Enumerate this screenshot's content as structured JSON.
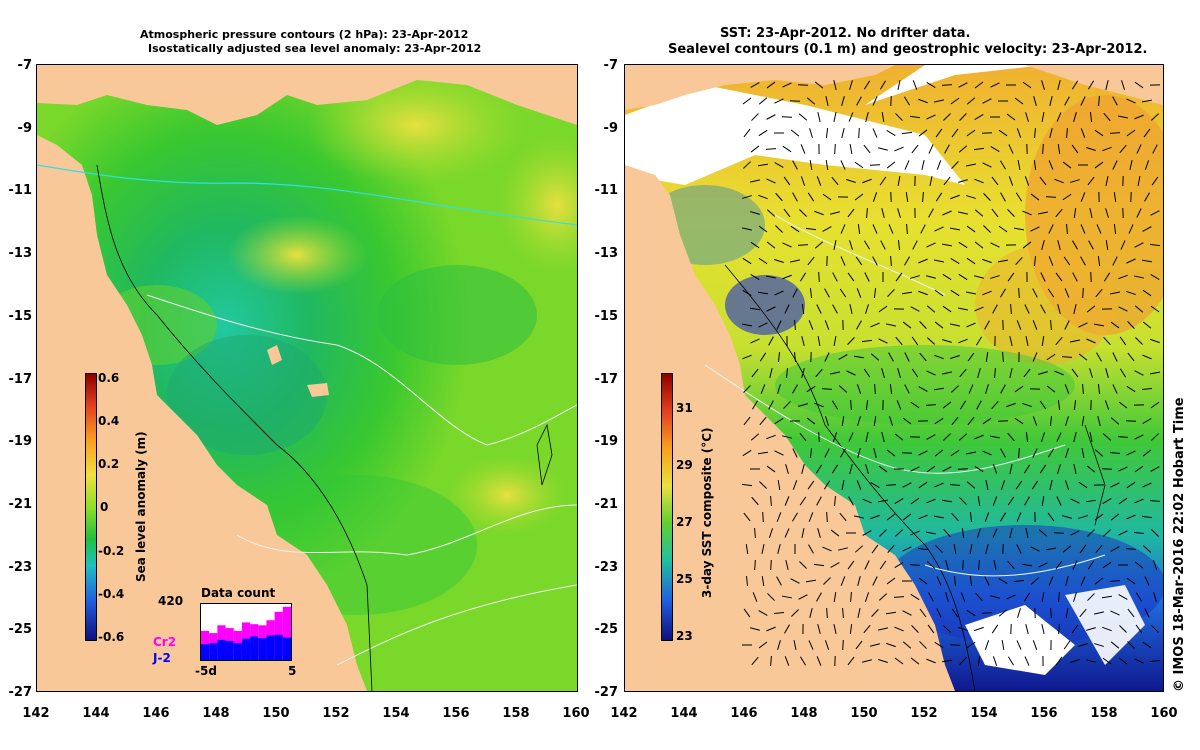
{
  "left_panel": {
    "title_line1": "Atmospheric pressure contours (2 hPa): 23-Apr-2012",
    "title_line2": "Isostatically adjusted sea level anomaly: 23-Apr-2012",
    "colorbar": {
      "label": "Sea level anomaly (m)",
      "ticks": [
        "0.6",
        "0.4",
        "0.2",
        "0",
        "-0.2",
        "-0.4",
        "-0.6"
      ]
    },
    "histogram": {
      "title": "Data count",
      "max_label": "420",
      "x_start": "-5d",
      "x_end": "5",
      "legend": [
        {
          "label": "Cr2",
          "color": "#ff00ff"
        },
        {
          "label": "J-2",
          "color": "#0000ff"
        }
      ],
      "bars_cr2": [
        0.52,
        0.48,
        0.62,
        0.57,
        0.52,
        0.67,
        0.64,
        0.62,
        0.71,
        0.86,
        0.95
      ],
      "bars_j2": [
        0.28,
        0.3,
        0.36,
        0.34,
        0.3,
        0.38,
        0.42,
        0.39,
        0.44,
        0.45,
        0.4
      ]
    }
  },
  "right_panel": {
    "title_line1": "SST: 23-Apr-2012. No drifter data.",
    "title_line2": "Sealevel contours (0.1 m) and geostrophic velocity: 23-Apr-2012.",
    "colorbar": {
      "label": "3-day SST composite (°C)",
      "ticks": [
        "31",
        "29",
        "27",
        "25",
        "23"
      ]
    },
    "credit": "© IMOS 18-Mar-2016 22:02 Hobart Time"
  },
  "axes": {
    "lat_ticks": [
      "-7",
      "-9",
      "-11",
      "-13",
      "-15",
      "-17",
      "-19",
      "-21",
      "-23",
      "-25",
      "-27"
    ],
    "lon_ticks": [
      "142",
      "144",
      "146",
      "148",
      "150",
      "152",
      "154",
      "156",
      "158",
      "160"
    ]
  },
  "colors": {
    "land": "#f8c898",
    "background": "#ffffff"
  }
}
